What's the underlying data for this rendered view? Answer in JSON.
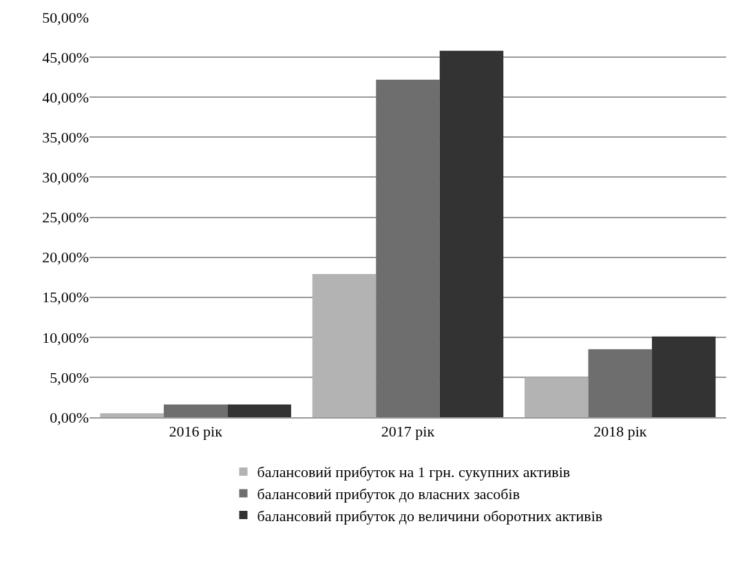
{
  "chart_data": {
    "type": "bar",
    "categories": [
      "2016 рік",
      "2017 рік",
      "2018 рік"
    ],
    "series": [
      {
        "name": "балансовий прибуток на 1 грн. сукупних активів",
        "color": "#b3b3b3",
        "values": [
          0.5,
          17.9,
          5.0
        ]
      },
      {
        "name": "балансовий прибуток до власних засобів",
        "color": "#6e6e6e",
        "values": [
          1.6,
          42.2,
          8.5
        ]
      },
      {
        "name": "балансовий прибуток до величини оборотних активів",
        "color": "#333333",
        "values": [
          1.6,
          45.8,
          10.1
        ]
      }
    ],
    "ylim": [
      0,
      50
    ],
    "yticks": [
      {
        "value": 0,
        "label": "0,00%"
      },
      {
        "value": 5,
        "label": "5,00%"
      },
      {
        "value": 10,
        "label": "10,00%"
      },
      {
        "value": 15,
        "label": "15,00%"
      },
      {
        "value": 20,
        "label": "20,00%"
      },
      {
        "value": 25,
        "label": "25,00%"
      },
      {
        "value": 30,
        "label": "30,00%"
      },
      {
        "value": 35,
        "label": "35,00%"
      },
      {
        "value": 40,
        "label": "40,00%"
      },
      {
        "value": 45,
        "label": "45,00%"
      },
      {
        "value": 50,
        "label": "50,00%"
      }
    ],
    "grid": "y",
    "legend": "bottom"
  }
}
